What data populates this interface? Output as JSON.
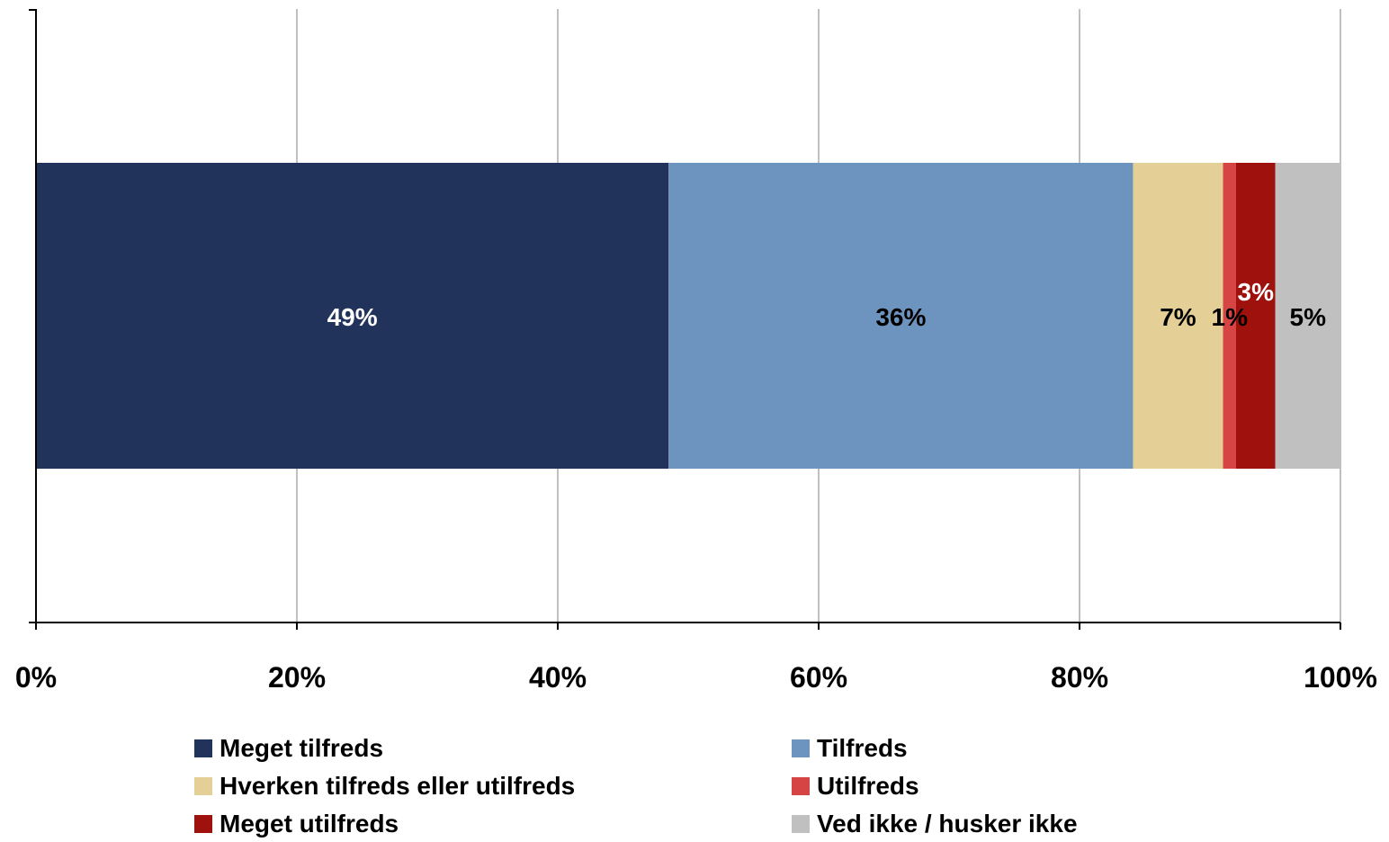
{
  "chart_data": {
    "type": "bar",
    "orientation": "horizontal",
    "stacked": "percent",
    "categories": [
      ""
    ],
    "xlim": [
      0,
      100
    ],
    "x_ticks": [
      "0%",
      "20%",
      "40%",
      "60%",
      "80%",
      "100%"
    ],
    "grid": true,
    "legend_position": "bottom",
    "series": [
      {
        "name": "Meget tilfreds",
        "values": [
          48.5
        ],
        "label": "49%",
        "color": "#21335b",
        "label_color": "#ffffff"
      },
      {
        "name": "Tilfreds",
        "values": [
          35.6
        ],
        "label": "36%",
        "color": "#6d94bf",
        "label_color": "#000000"
      },
      {
        "name": "Hverken tilfreds eller utilfreds",
        "values": [
          6.9
        ],
        "label": "7%",
        "color": "#e4d096",
        "label_color": "#000000"
      },
      {
        "name": "Utilfreds",
        "values": [
          1.0
        ],
        "label": "1%",
        "color": "#d74444",
        "label_color": "#000000"
      },
      {
        "name": "Meget utilfreds",
        "values": [
          3.0
        ],
        "label": "3%",
        "color": "#9e110c",
        "label_color": "#ffffff"
      },
      {
        "name": "Ved ikke / husker ikke",
        "values": [
          5.0
        ],
        "label": "5%",
        "color": "#c0c0c0",
        "label_color": "#000000"
      }
    ]
  }
}
